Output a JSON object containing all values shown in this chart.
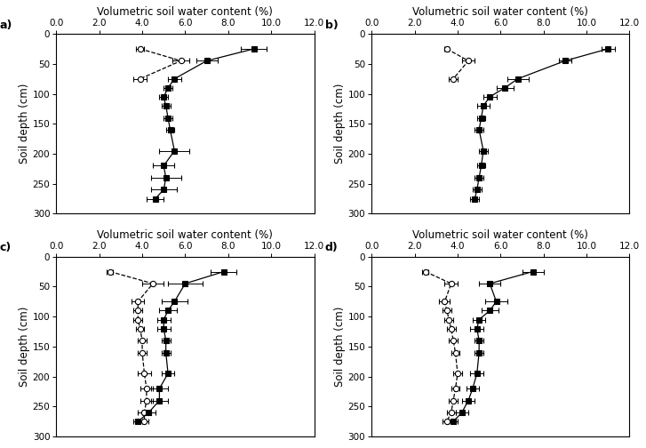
{
  "subplots": [
    {
      "label": "a)",
      "xlim": [
        0.0,
        12.0
      ],
      "xticks": [
        0.0,
        2.0,
        4.0,
        6.0,
        8.0,
        10.0,
        12.0
      ],
      "ylim": [
        300,
        0
      ],
      "yticks": [
        0,
        50,
        100,
        150,
        200,
        250,
        300
      ],
      "s1_depths": [
        25,
        45,
        75
      ],
      "s1_values": [
        3.9,
        5.8,
        3.9
      ],
      "s1_xerr": [
        0.2,
        0.4,
        0.3
      ],
      "s2_depths": [
        25,
        45,
        75,
        90,
        105,
        120,
        140,
        160,
        195,
        220,
        240,
        260,
        275
      ],
      "s2_values": [
        9.2,
        7.0,
        5.5,
        5.2,
        5.0,
        5.1,
        5.2,
        5.3,
        5.5,
        5.0,
        5.1,
        5.0,
        4.6
      ],
      "s2_xerr": [
        0.6,
        0.5,
        0.3,
        0.2,
        0.2,
        0.2,
        0.2,
        0.2,
        0.7,
        0.5,
        0.7,
        0.6,
        0.4
      ]
    },
    {
      "label": "b)",
      "xlim": [
        0.0,
        12.0
      ],
      "xticks": [
        0.0,
        2.0,
        4.0,
        6.0,
        8.0,
        10.0,
        12.0
      ],
      "ylim": [
        300,
        0
      ],
      "yticks": [
        0,
        50,
        100,
        150,
        200,
        250,
        300
      ],
      "s1_depths": [
        25,
        45,
        75
      ],
      "s1_values": [
        3.5,
        4.5,
        3.8
      ],
      "s1_xerr": [
        0.1,
        0.3,
        0.2
      ],
      "s2_depths": [
        25,
        45,
        75,
        90,
        105,
        120,
        140,
        160,
        195,
        220,
        240,
        260,
        275
      ],
      "s2_values": [
        11.0,
        9.0,
        6.8,
        6.2,
        5.5,
        5.2,
        5.1,
        5.0,
        5.2,
        5.1,
        5.0,
        4.9,
        4.8
      ],
      "s2_xerr": [
        0.3,
        0.3,
        0.5,
        0.4,
        0.3,
        0.3,
        0.2,
        0.2,
        0.2,
        0.2,
        0.2,
        0.2,
        0.2
      ]
    },
    {
      "label": "c)",
      "xlim": [
        0.0,
        12.0
      ],
      "xticks": [
        0.0,
        2.0,
        4.0,
        6.0,
        8.0,
        10.0,
        12.0
      ],
      "ylim": [
        300,
        0
      ],
      "yticks": [
        0,
        50,
        100,
        150,
        200,
        250,
        300
      ],
      "s1_depths": [
        25,
        45,
        75,
        90,
        105,
        120,
        140,
        160,
        195,
        220,
        240,
        260,
        275
      ],
      "s1_values": [
        2.5,
        4.5,
        3.8,
        3.8,
        3.8,
        3.9,
        4.0,
        4.0,
        4.1,
        4.2,
        4.2,
        4.1,
        4.1
      ],
      "s1_xerr": [
        0.15,
        0.5,
        0.3,
        0.2,
        0.2,
        0.2,
        0.2,
        0.2,
        0.3,
        0.3,
        0.3,
        0.3,
        0.2
      ],
      "s2_depths": [
        25,
        45,
        75,
        90,
        105,
        120,
        140,
        160,
        195,
        220,
        240,
        260,
        275
      ],
      "s2_values": [
        7.8,
        6.0,
        5.5,
        5.2,
        5.0,
        5.0,
        5.1,
        5.1,
        5.2,
        4.8,
        4.8,
        4.3,
        3.8
      ],
      "s2_xerr": [
        0.6,
        0.8,
        0.6,
        0.4,
        0.3,
        0.3,
        0.2,
        0.2,
        0.3,
        0.4,
        0.4,
        0.3,
        0.2
      ]
    },
    {
      "label": "d)",
      "xlim": [
        0.0,
        12.0
      ],
      "xticks": [
        0.0,
        2.0,
        4.0,
        6.0,
        8.0,
        10.0,
        12.0
      ],
      "ylim": [
        300,
        0
      ],
      "yticks": [
        0,
        50,
        100,
        150,
        200,
        250,
        300
      ],
      "s1_depths": [
        25,
        45,
        75,
        90,
        105,
        120,
        140,
        160,
        195,
        220,
        240,
        260,
        275
      ],
      "s1_values": [
        2.5,
        3.7,
        3.4,
        3.5,
        3.6,
        3.7,
        3.8,
        3.9,
        4.0,
        3.9,
        3.8,
        3.7,
        3.5
      ],
      "s1_xerr": [
        0.15,
        0.3,
        0.25,
        0.2,
        0.2,
        0.2,
        0.2,
        0.2,
        0.2,
        0.2,
        0.2,
        0.2,
        0.2
      ],
      "s2_depths": [
        25,
        45,
        75,
        90,
        105,
        120,
        140,
        160,
        195,
        220,
        240,
        260,
        275
      ],
      "s2_values": [
        7.5,
        5.5,
        5.8,
        5.5,
        5.0,
        4.9,
        5.0,
        5.0,
        4.9,
        4.7,
        4.5,
        4.2,
        3.8
      ],
      "s2_xerr": [
        0.5,
        0.5,
        0.5,
        0.4,
        0.3,
        0.3,
        0.2,
        0.2,
        0.3,
        0.3,
        0.3,
        0.3,
        0.2
      ]
    }
  ],
  "xlabel": "Volumetric soil water content (%)",
  "ylabel": "Soil depth (cm)",
  "tick_fontsize": 7.5,
  "label_fontsize": 8.5,
  "xlabel_fontsize": 8.5
}
